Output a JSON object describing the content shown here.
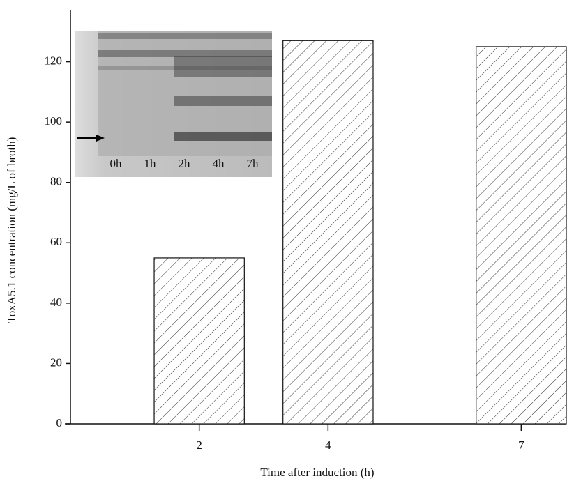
{
  "chart_data": {
    "type": "bar",
    "x_label": "Time after induction (h)",
    "y_label": "ToxA5.1 concentration (mg/L of broth)",
    "x": [
      2,
      4,
      7
    ],
    "values": [
      55,
      127,
      125
    ],
    "bar_width": 1.4,
    "xlim": [
      0,
      7.7
    ],
    "xticks": [
      2,
      4,
      7
    ],
    "ylim": [
      0,
      137
    ],
    "yticks": [
      0,
      20,
      40,
      60,
      80,
      100,
      120
    ],
    "fill": "hatch",
    "inset_labels": [
      "0h",
      "1h",
      "2h",
      "4h",
      "7h"
    ]
  }
}
